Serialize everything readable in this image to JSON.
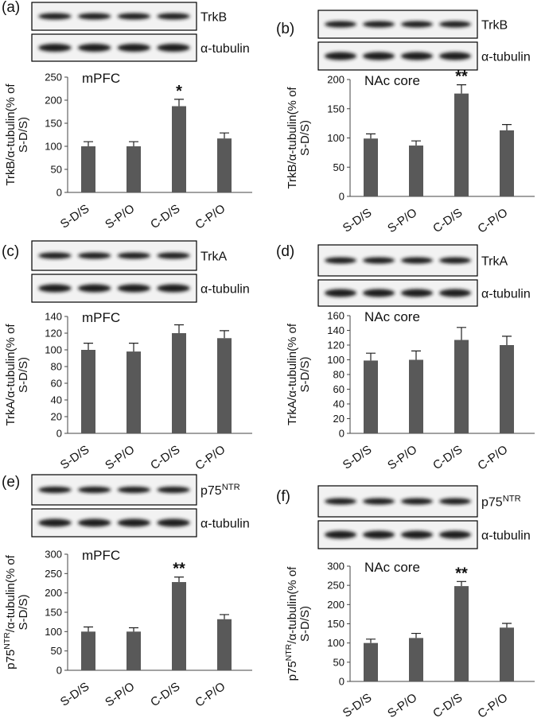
{
  "chart_data": [
    {
      "type": "bar",
      "panel": "(a)",
      "title": "mPFC",
      "blot_label": "TrkB",
      "control_label": "α-tubulin",
      "ylabel": [
        "TrkB/α-tubulin(% of",
        "S-D/S)"
      ],
      "categories": [
        "S-D/S",
        "S-P/O",
        "C-D/S",
        "C-P/O"
      ],
      "values": [
        100,
        100,
        187,
        117
      ],
      "error": [
        10,
        10,
        15,
        12
      ],
      "color": "#595959",
      "ylim": [
        0,
        250
      ],
      "yticks": [
        0,
        50,
        100,
        150,
        200,
        250
      ],
      "annotations": [
        {
          "text": "*",
          "category": "C-D/S"
        }
      ]
    },
    {
      "type": "bar",
      "panel": "(b)",
      "title": "NAc core",
      "blot_label": "TrkB",
      "control_label": "α-tubulin",
      "ylabel": [
        "TrkB/α-tubulin(% of",
        "S-D/S)"
      ],
      "categories": [
        "S-D/S",
        "S-P/O",
        "C-D/S",
        "C-P/O"
      ],
      "values": [
        99,
        87,
        176,
        113
      ],
      "error": [
        8,
        8,
        15,
        10
      ],
      "color": "#595959",
      "ylim": [
        0,
        200
      ],
      "yticks": [
        0,
        50,
        100,
        150,
        200
      ],
      "annotations": [
        {
          "text": "**",
          "category": "C-D/S"
        }
      ]
    },
    {
      "type": "bar",
      "panel": "(c)",
      "title": "mPFC",
      "blot_label": "TrkA",
      "control_label": "α-tubulin",
      "ylabel": [
        "TrkA/α-tubulin(% of",
        "S-D/S)"
      ],
      "categories": [
        "S-D/S",
        "S-P/O",
        "C-D/S",
        "C-P/O"
      ],
      "values": [
        100,
        98,
        120,
        114
      ],
      "error": [
        8,
        10,
        10,
        9
      ],
      "color": "#595959",
      "ylim": [
        0,
        140
      ],
      "yticks": [
        0,
        20,
        40,
        60,
        80,
        100,
        120,
        140
      ],
      "annotations": []
    },
    {
      "type": "bar",
      "panel": "(d)",
      "title": "NAc core",
      "blot_label": "TrkA",
      "control_label": "α-tubulin",
      "ylabel": [
        "TrkA/α-tubulin(% of",
        "S-D/S)"
      ],
      "categories": [
        "S-D/S",
        "S-P/O",
        "C-D/S",
        "C-P/O"
      ],
      "values": [
        99,
        100,
        127,
        120
      ],
      "error": [
        10,
        12,
        17,
        12
      ],
      "color": "#595959",
      "ylim": [
        0,
        160
      ],
      "yticks": [
        0,
        20,
        40,
        60,
        80,
        100,
        120,
        140,
        160
      ],
      "annotations": []
    },
    {
      "type": "bar",
      "panel": "(e)",
      "title": "mPFC",
      "blot_label": [
        "p75",
        "NTR"
      ],
      "control_label": "α-tubulin",
      "ylabel": [
        [
          "p75",
          "NTR",
          "/α-tubulin(% of"
        ],
        "S-D/S)"
      ],
      "categories": [
        "S-D/S",
        "S-P/O",
        "C-D/S",
        "C-P/O"
      ],
      "values": [
        100,
        100,
        228,
        132
      ],
      "error": [
        12,
        10,
        13,
        12
      ],
      "color": "#595959",
      "ylim": [
        0,
        300
      ],
      "yticks": [
        0,
        50,
        100,
        150,
        200,
        250,
        300
      ],
      "annotations": [
        {
          "text": "**",
          "category": "C-D/S"
        }
      ]
    },
    {
      "type": "bar",
      "panel": "(f)",
      "title": "NAc core",
      "blot_label": [
        "p75",
        "NTR"
      ],
      "control_label": "α-tubulin",
      "ylabel": [
        [
          "p75",
          "NTR",
          "/α-tubulin(% of"
        ],
        "S-D/S)"
      ],
      "categories": [
        "S-D/S",
        "S-P/O",
        "C-D/S",
        "C-P/O"
      ],
      "values": [
        100,
        113,
        248,
        140
      ],
      "error": [
        10,
        12,
        12,
        11
      ],
      "color": "#595959",
      "ylim": [
        0,
        300
      ],
      "yticks": [
        0,
        50,
        100,
        150,
        200,
        250,
        300
      ],
      "annotations": [
        {
          "text": "**",
          "category": "C-D/S"
        }
      ]
    }
  ]
}
